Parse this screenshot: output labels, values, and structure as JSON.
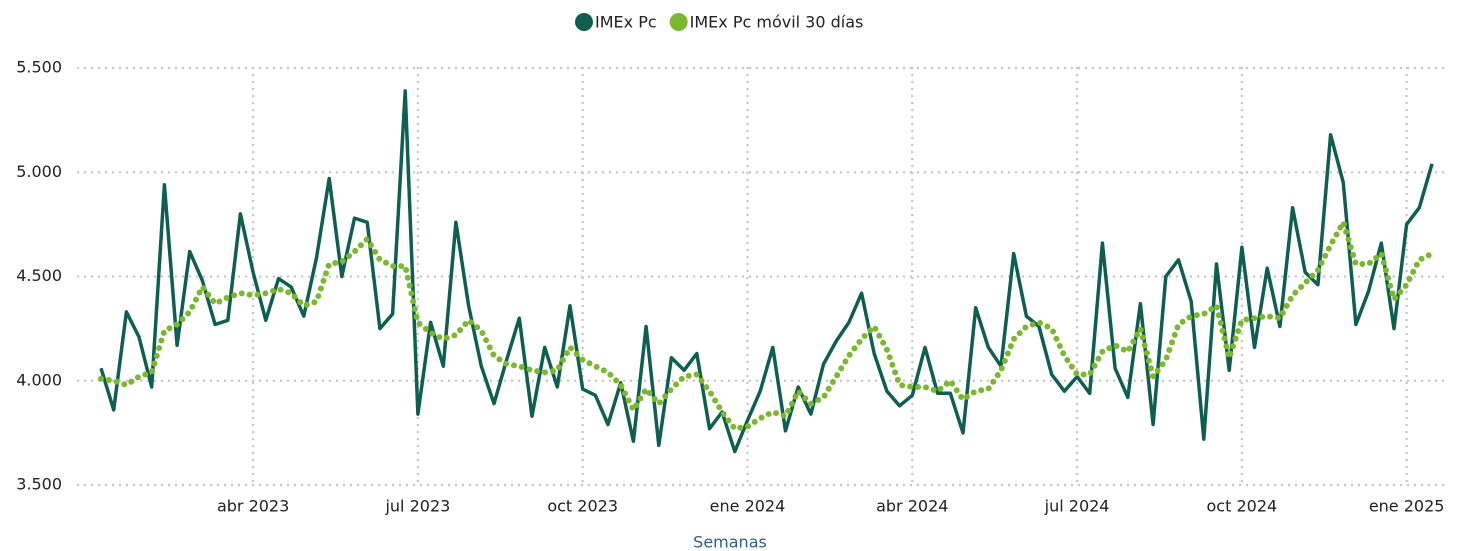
{
  "chart_data": {
    "type": "line",
    "xlabel": "Semanas",
    "categories": [
      null,
      null,
      null,
      null,
      null,
      null,
      null,
      null,
      null,
      null,
      null,
      null,
      "abr 2023",
      null,
      null,
      null,
      null,
      null,
      null,
      null,
      null,
      null,
      null,
      null,
      null,
      "jul 2023",
      null,
      null,
      null,
      null,
      null,
      null,
      null,
      null,
      null,
      null,
      null,
      null,
      "oct 2023",
      null,
      null,
      null,
      null,
      null,
      null,
      null,
      null,
      null,
      null,
      null,
      null,
      "ene 2024",
      null,
      null,
      null,
      null,
      null,
      null,
      null,
      null,
      null,
      null,
      null,
      null,
      "abr 2024",
      null,
      null,
      null,
      null,
      null,
      null,
      null,
      null,
      null,
      null,
      null,
      null,
      "jul 2024",
      null,
      null,
      null,
      null,
      null,
      null,
      null,
      null,
      null,
      null,
      null,
      null,
      "oct 2024",
      null,
      null,
      null,
      null,
      null,
      null,
      null,
      null,
      null,
      null,
      null,
      null,
      "ene 2025",
      null,
      null
    ],
    "series": [
      {
        "name": "IMEx Pc",
        "color": "#0e5f52",
        "style": "solid",
        "values": [
          4060,
          3860,
          4330,
          4210,
          3970,
          4940,
          4170,
          4620,
          4480,
          4270,
          4290,
          4800,
          4520,
          4290,
          4490,
          4450,
          4310,
          4590,
          4970,
          4500,
          4780,
          4760,
          4250,
          4320,
          5390,
          3840,
          4280,
          4070,
          4760,
          4360,
          4070,
          3890,
          4100,
          4300,
          3830,
          4160,
          3970,
          4360,
          3960,
          3930,
          3790,
          3990,
          3710,
          4260,
          3690,
          4110,
          4050,
          4130,
          3770,
          3850,
          3660,
          3810,
          3950,
          4160,
          3760,
          3970,
          3840,
          4080,
          4190,
          4280,
          4420,
          4130,
          3950,
          3880,
          3930,
          4160,
          3940,
          3940,
          3750,
          4350,
          4160,
          4070,
          4610,
          4310,
          4260,
          4030,
          3950,
          4020,
          3940,
          4660,
          4060,
          3920,
          4370,
          3790,
          4500,
          4580,
          4380,
          3720,
          4560,
          4050,
          4640,
          4160,
          4540,
          4260,
          4830,
          4520,
          4460,
          5180,
          4950,
          4270,
          4430,
          4660,
          4250,
          4750,
          4830,
          5040
        ]
      },
      {
        "name": "IMEx Pc móvil 30 días",
        "color": "#7cb82f",
        "style": "dotted",
        "values": [
          4010,
          4000,
          3980,
          4020,
          4040,
          4240,
          4270,
          4330,
          4450,
          4370,
          4400,
          4420,
          4410,
          4420,
          4440,
          4420,
          4360,
          4380,
          4560,
          4570,
          4620,
          4680,
          4580,
          4550,
          4550,
          4280,
          4230,
          4200,
          4220,
          4290,
          4240,
          4120,
          4080,
          4070,
          4050,
          4040,
          4050,
          4160,
          4100,
          4070,
          4040,
          3980,
          3860,
          3960,
          3890,
          3960,
          4020,
          4030,
          3950,
          3850,
          3770,
          3780,
          3820,
          3850,
          3830,
          3950,
          3890,
          3920,
          4020,
          4120,
          4200,
          4260,
          4150,
          3980,
          3970,
          3970,
          3950,
          4000,
          3910,
          3950,
          3960,
          4050,
          4200,
          4260,
          4280,
          4250,
          4120,
          4030,
          4030,
          4140,
          4170,
          4140,
          4250,
          4020,
          4100,
          4270,
          4310,
          4320,
          4360,
          4110,
          4290,
          4300,
          4310,
          4300,
          4410,
          4470,
          4530,
          4650,
          4760,
          4560,
          4560,
          4610,
          4390,
          4460,
          4580,
          4610
        ]
      }
    ],
    "ylim": [
      3500,
      5500
    ],
    "yticks": [
      {
        "value": 3500,
        "label": "3.500"
      },
      {
        "value": 4000,
        "label": "4.000"
      },
      {
        "value": 4500,
        "label": "4.500"
      },
      {
        "value": 5000,
        "label": "5.000"
      },
      {
        "value": 5500,
        "label": "5.500"
      }
    ],
    "grid": true,
    "legend": "top"
  }
}
